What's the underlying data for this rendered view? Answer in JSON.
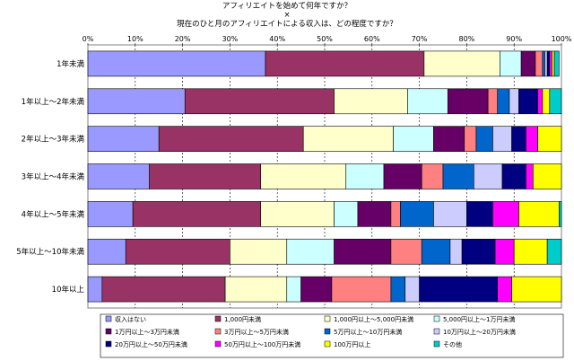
{
  "chart_data": {
    "type": "bar",
    "orientation": "horizontal",
    "stacked": "percent",
    "title_lines": [
      "アフィリエイトを始めて何年ですか？",
      "×",
      "現在のひと月のアフィリエイトによる収入は、どの程度ですか？"
    ],
    "xlim": [
      0,
      100
    ],
    "x_ticks": [
      "0%",
      "10%",
      "20%",
      "30%",
      "40%",
      "50%",
      "60%",
      "70%",
      "80%",
      "90%",
      "100%"
    ],
    "grid": true,
    "legend_position": "bottom",
    "categories": [
      "1年未満",
      "1年以上～2年未満",
      "2年以上～3年未満",
      "3年以上～4年未満",
      "4年以上～5年未満",
      "5年以上～10年未満",
      "10年以上"
    ],
    "series": [
      {
        "name": "収入はない",
        "color": "#9999FF",
        "values": [
          37.5,
          20.5,
          15.0,
          13.0,
          9.5,
          8.0,
          3.0
        ]
      },
      {
        "name": "1,000円未満",
        "color": "#993366",
        "values": [
          33.5,
          31.5,
          30.5,
          23.5,
          27.0,
          22.0,
          26.0
        ]
      },
      {
        "name": "1,000円以上～5,000円未満",
        "color": "#FFFFCC",
        "values": [
          16.0,
          15.5,
          19.0,
          18.0,
          15.5,
          12.0,
          13.0
        ]
      },
      {
        "name": "5,000円以上～1万円未満",
        "color": "#CCFFFF",
        "values": [
          4.5,
          8.5,
          8.5,
          8.0,
          5.0,
          10.0,
          3.0
        ]
      },
      {
        "name": "1万円以上～3万円未満",
        "color": "#660066",
        "values": [
          3.0,
          8.5,
          6.5,
          8.0,
          7.0,
          12.0,
          6.5
        ]
      },
      {
        "name": "3万円以上～5万円未満",
        "color": "#FF8080",
        "values": [
          1.5,
          2.0,
          2.5,
          4.5,
          2.0,
          6.5,
          12.5
        ]
      },
      {
        "name": "5万円以上～10万円未満",
        "color": "#0066CC",
        "values": [
          0.5,
          2.5,
          3.5,
          6.5,
          7.0,
          6.0,
          3.0
        ]
      },
      {
        "name": "10万円以上～20万円未満",
        "color": "#CCCCFF",
        "values": [
          0.5,
          2.0,
          4.0,
          6.0,
          7.0,
          2.5,
          3.0
        ]
      },
      {
        "name": "20万円以上～50万円未満",
        "color": "#000080",
        "values": [
          0.5,
          4.0,
          3.0,
          5.0,
          5.5,
          7.0,
          16.5
        ]
      },
      {
        "name": "50万円以上～100万円未満",
        "color": "#FF00FF",
        "values": [
          0.5,
          1.0,
          2.5,
          1.5,
          5.5,
          4.0,
          3.0
        ]
      },
      {
        "name": "100万円以上",
        "color": "#FFFF00",
        "values": [
          0.5,
          1.5,
          5.0,
          6.0,
          8.5,
          7.0,
          10.5
        ]
      },
      {
        "name": "その他",
        "color": "#00CCCC",
        "values": [
          1.0,
          2.5,
          0.0,
          0.0,
          0.5,
          3.0,
          0.0
        ]
      }
    ]
  }
}
